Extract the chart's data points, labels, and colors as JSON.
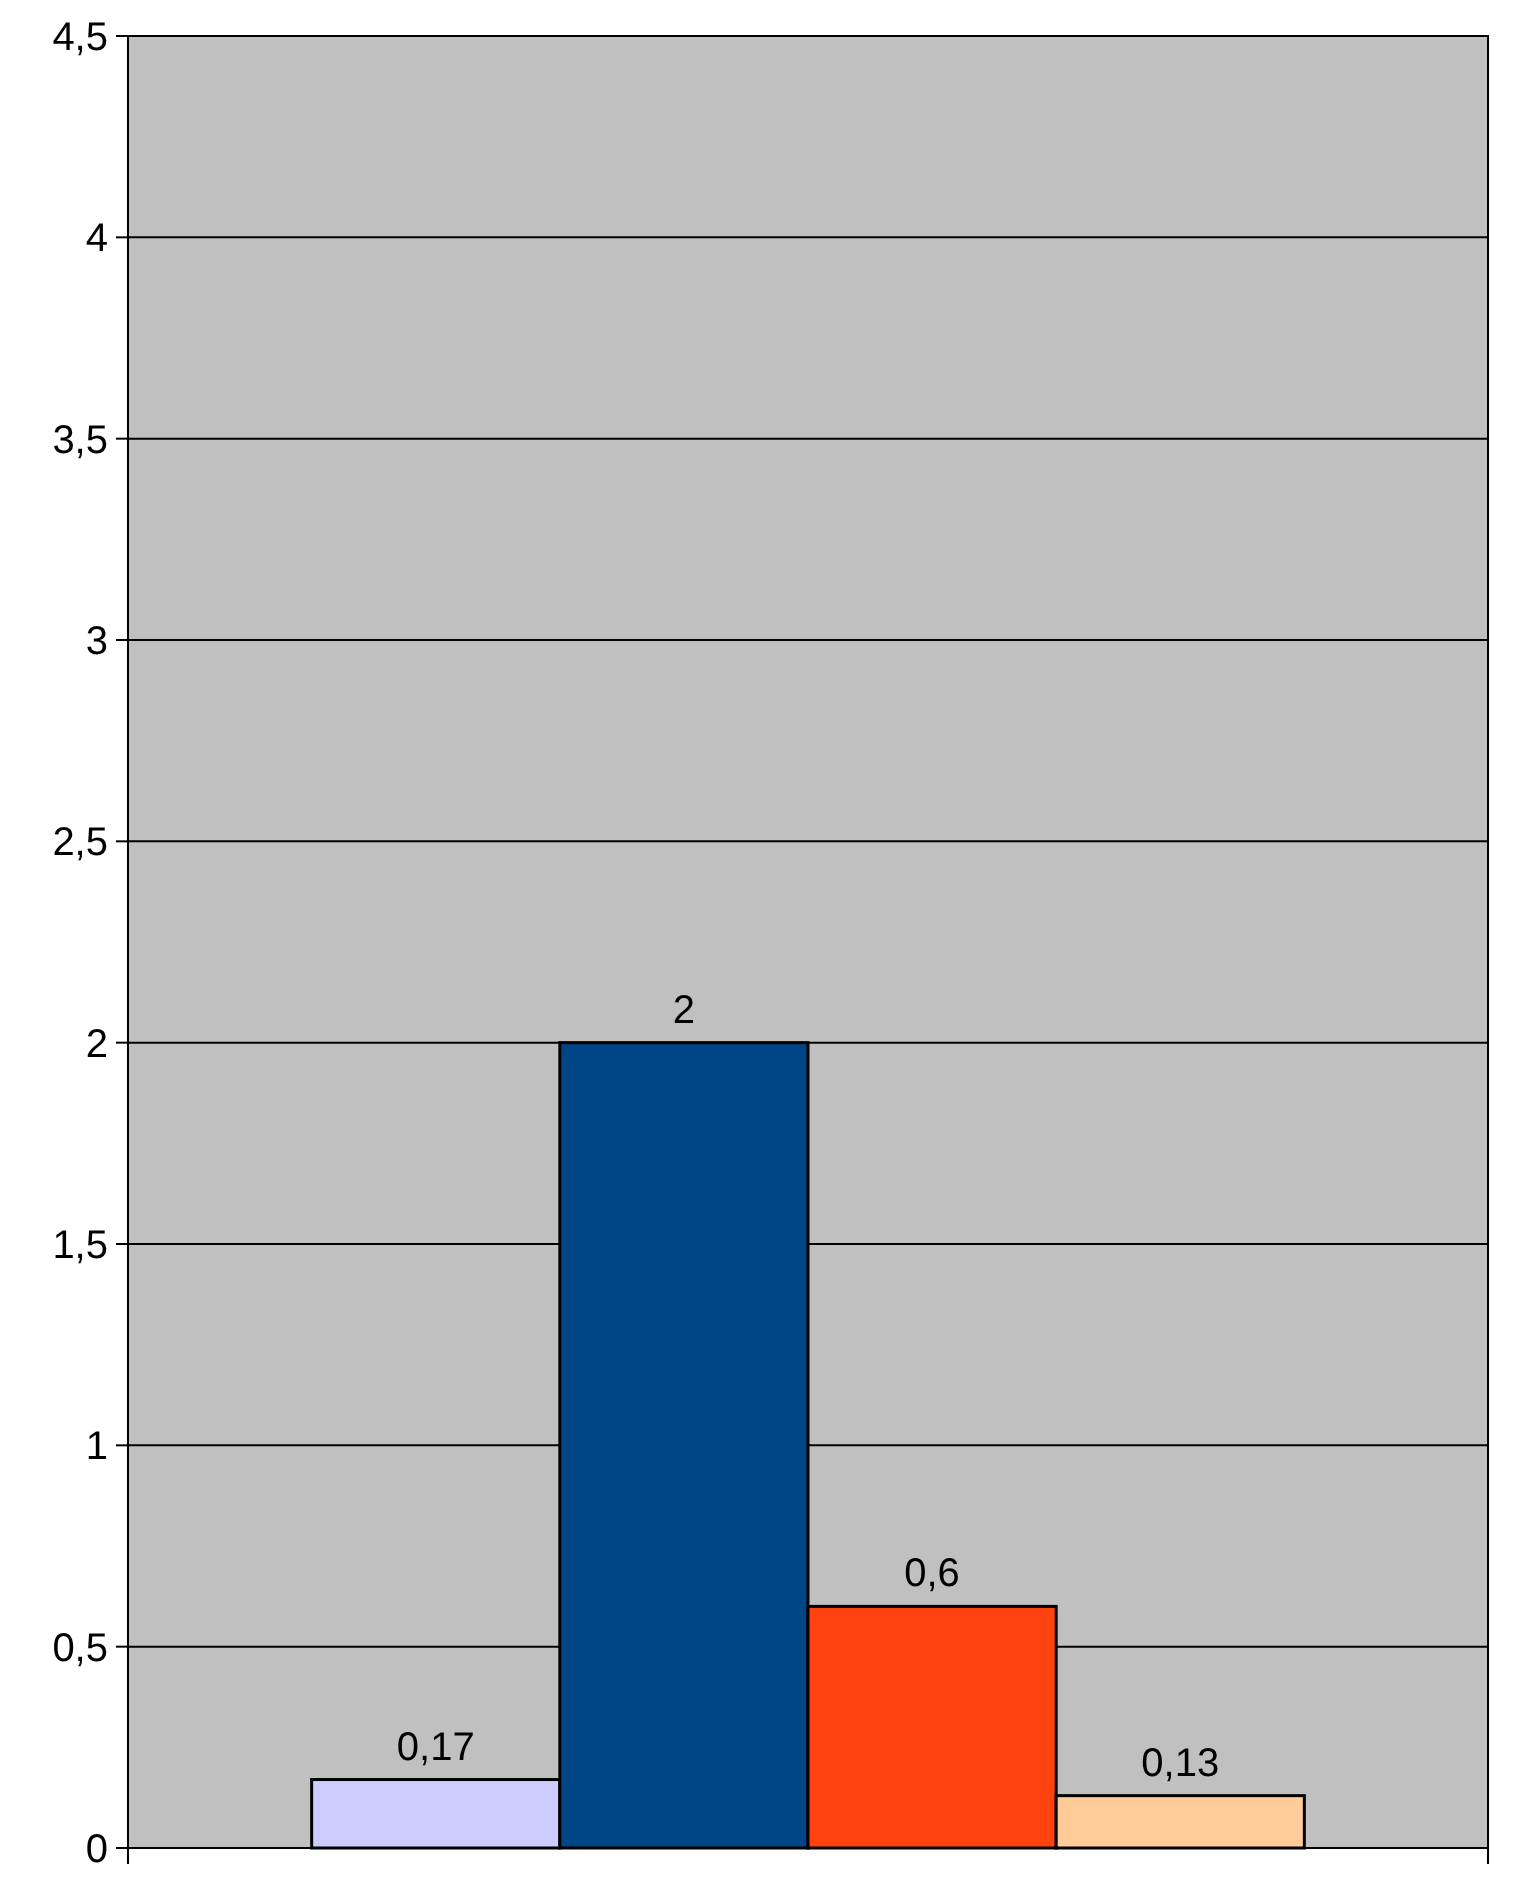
{
  "chart_data": {
    "type": "bar",
    "categories": [
      null,
      null,
      null,
      null
    ],
    "values": [
      0.17,
      2,
      0.6,
      0.13
    ],
    "colors": [
      "#ccccff",
      "#004586",
      "#ff420e",
      "#ffcc99"
    ],
    "value_labels": [
      "0,17",
      "2",
      "0,6",
      "0,13"
    ],
    "ylim": [
      0,
      4.5
    ],
    "yticks": [
      0,
      {
        "value": 0.5,
        "label": "0,5"
      },
      1,
      {
        "value": 1.5,
        "label": "1,5"
      },
      2,
      {
        "value": 2.5,
        "label": "2,5"
      },
      3,
      {
        "value": 3.5,
        "label": "3,5"
      },
      4,
      {
        "value": 4.5,
        "label": "4,5"
      }
    ],
    "grid": "y"
  }
}
